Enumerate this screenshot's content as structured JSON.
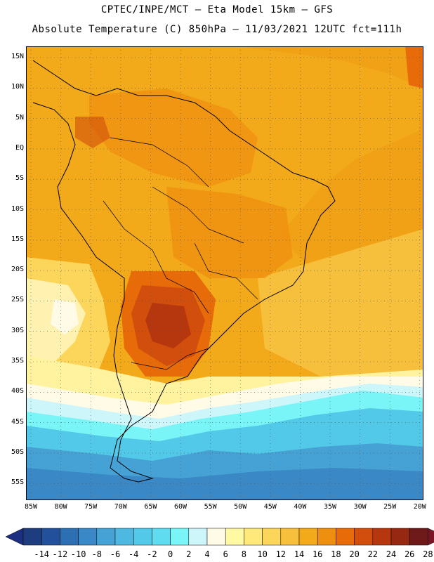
{
  "header": {
    "line1": "CPTEC/INPE/MCT —  Eta Model 15km — GFS",
    "line2": "Absolute Temperature (C) 850hPa — 11/03/2021 12UTC fct=111h"
  },
  "map": {
    "lat_labels": [
      "15N",
      "10N",
      "5N",
      "EQ",
      "5S",
      "10S",
      "15S",
      "20S",
      "25S",
      "30S",
      "35S",
      "40S",
      "45S",
      "50S",
      "55S"
    ],
    "lon_labels": [
      "85W",
      "80W",
      "75W",
      "70W",
      "65W",
      "60W",
      "55W",
      "50W",
      "45W",
      "40W",
      "35W",
      "30W",
      "25W",
      "20W"
    ]
  },
  "colorbar": {
    "labels": [
      "-14",
      "-12",
      "-10",
      "-8",
      "-6",
      "-4",
      "-2",
      "0",
      "2",
      "4",
      "6",
      "8",
      "10",
      "12",
      "14",
      "16",
      "18",
      "20",
      "22",
      "24",
      "26",
      "28"
    ],
    "colors": [
      "#1d3d7e",
      "#22509a",
      "#2d6fb3",
      "#3a88c6",
      "#46a2d4",
      "#4fb8e0",
      "#52c9e8",
      "#5fdcf0",
      "#7af5f7",
      "#cdf6fb",
      "#fffbe6",
      "#fff9a4",
      "#ffe97a",
      "#fcd55b",
      "#f7c03c",
      "#f2a91a",
      "#ef8f10",
      "#e86b0a",
      "#d14e0c",
      "#b6370d",
      "#962812",
      "#6e1a1a"
    ],
    "min_color": "#1d2f80",
    "max_color": "#7a1525"
  }
}
